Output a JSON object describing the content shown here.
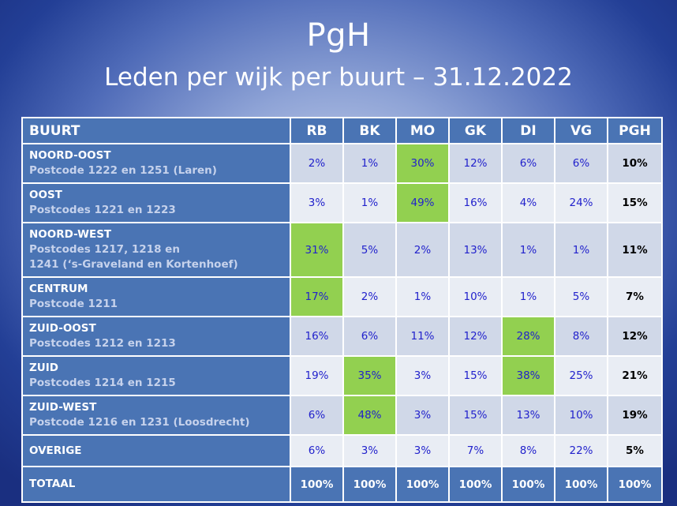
{
  "title": "PgH",
  "subtitle": "Leden per wijk per buurt – 31.12.2022",
  "table": {
    "headers": [
      "BUURT",
      "RB",
      "BK",
      "MO",
      "GK",
      "DI",
      "VG",
      "PGH"
    ],
    "rows": [
      {
        "name": "NOORD-OOST",
        "sub": "Postcode 1222 en 1251 (Laren)",
        "values": [
          "2%",
          "1%",
          "30%",
          "12%",
          "6%",
          "6%"
        ],
        "total": "10%"
      },
      {
        "name": "OOST",
        "sub": "Postcodes 1221 en 1223",
        "values": [
          "3%",
          "1%",
          "49%",
          "16%",
          "4%",
          "24%"
        ],
        "total": "15%"
      },
      {
        "name": "NOORD-WEST",
        "sub": "Postcodes 1217, 1218 en",
        "sub2": "1241 (‘s-Graveland en Kortenhoef)",
        "values": [
          "31%",
          "5%",
          "2%",
          "13%",
          "1%",
          "1%"
        ],
        "total": "11%"
      },
      {
        "name": "CENTRUM",
        "sub": "Postcode 1211",
        "values": [
          "17%",
          "2%",
          "1%",
          "10%",
          "1%",
          "5%"
        ],
        "total": "7%"
      },
      {
        "name": "ZUID-OOST",
        "sub": "Postcodes 1212 en 1213",
        "values": [
          "16%",
          "6%",
          "11%",
          "12%",
          "28%",
          "8%"
        ],
        "total": "12%"
      },
      {
        "name": "ZUID",
        "sub": "Postcodes 1214 en 1215",
        "values": [
          "19%",
          "35%",
          "3%",
          "15%",
          "38%",
          "25%"
        ],
        "total": "21%"
      },
      {
        "name": "ZUID-WEST",
        "sub": "Postcode 1216 en 1231 (Loosdrecht)",
        "values": [
          "6%",
          "48%",
          "3%",
          "15%",
          "13%",
          "10%"
        ],
        "total": "19%"
      },
      {
        "name": "OVERIGE",
        "values": [
          "6%",
          "3%",
          "3%",
          "7%",
          "8%",
          "22%"
        ],
        "total": "5%"
      }
    ],
    "totals": {
      "name": "TOTAAL",
      "values": [
        "100%",
        "100%",
        "100%",
        "100%",
        "100%",
        "100%",
        "100%"
      ]
    },
    "highlight_color": "#92d050"
  }
}
